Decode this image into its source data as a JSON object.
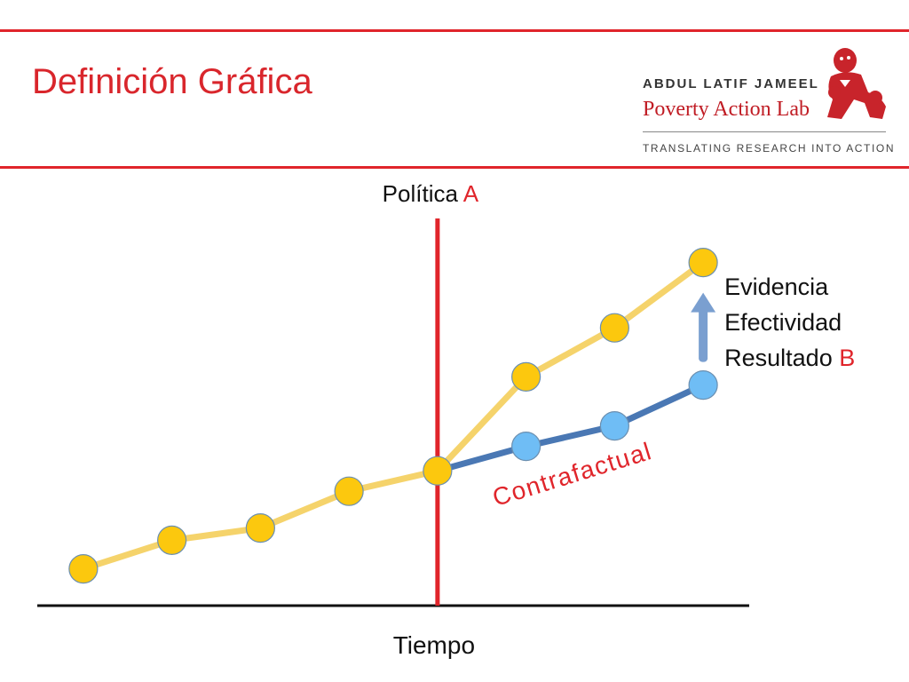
{
  "slide": {
    "title": "Definición Gráfica"
  },
  "logo": {
    "line1": "ABDUL LATIF JAMEEL",
    "line2": "Poverty Action Lab",
    "tagline": "TRANSLATING RESEARCH INTO ACTION"
  },
  "colors": {
    "accent_red": "#e0252b",
    "treatment_line": "#f5d36b",
    "treatment_marker": "#fcc80e",
    "counterfactual_line": "#4a78b4",
    "counterfactual_marker": "#6fbdf5",
    "arrow": "#7a9fd0"
  },
  "chart_data": {
    "type": "line",
    "policy_label_prefix": "Política ",
    "policy_label_suffix": "A",
    "xlabel": "Tiempo",
    "ylabel": "",
    "x": [
      1,
      2,
      3,
      4,
      5,
      6,
      7,
      8
    ],
    "xlim": [
      0.5,
      8.5
    ],
    "ylim": [
      0,
      10
    ],
    "policy_x": 5,
    "series": [
      {
        "key": "treatment",
        "x": [
          1,
          2,
          3,
          4,
          5,
          6,
          7,
          8
        ],
        "values": [
          0.9,
          1.6,
          1.9,
          2.8,
          3.3,
          5.6,
          6.8,
          8.4
        ]
      },
      {
        "key": "counterfactual",
        "name": "Contrafactual",
        "x": [
          5,
          6,
          7,
          8
        ],
        "values": [
          3.3,
          3.9,
          4.4,
          5.4
        ]
      }
    ],
    "annotation": {
      "lines": [
        "Evidencia",
        "Efectividad",
        "Resultado "
      ],
      "last_suffix": "B"
    }
  }
}
